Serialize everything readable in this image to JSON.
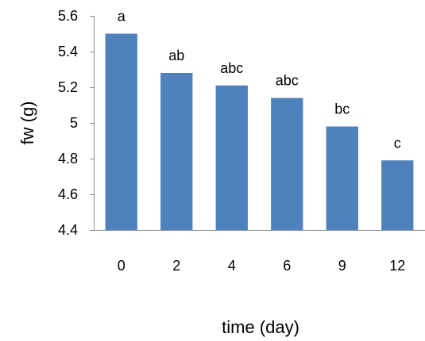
{
  "chart_data": {
    "type": "bar",
    "categories": [
      "0",
      "2",
      "4",
      "6",
      "9",
      "12"
    ],
    "values": [
      5.5,
      5.28,
      5.21,
      5.14,
      4.98,
      4.79
    ],
    "data_labels": [
      "a",
      "ab",
      "abc",
      "abc",
      "bc",
      "c"
    ],
    "xlabel": "time (day)",
    "ylabel": "fw (g)",
    "ylim": [
      4.4,
      5.6
    ],
    "yticks": [
      "4.4",
      "4.6",
      "4.8",
      "5",
      "5.2",
      "5.4",
      "5.6"
    ],
    "bar_color": "#4f81bd",
    "grid": false,
    "legend": "none"
  }
}
